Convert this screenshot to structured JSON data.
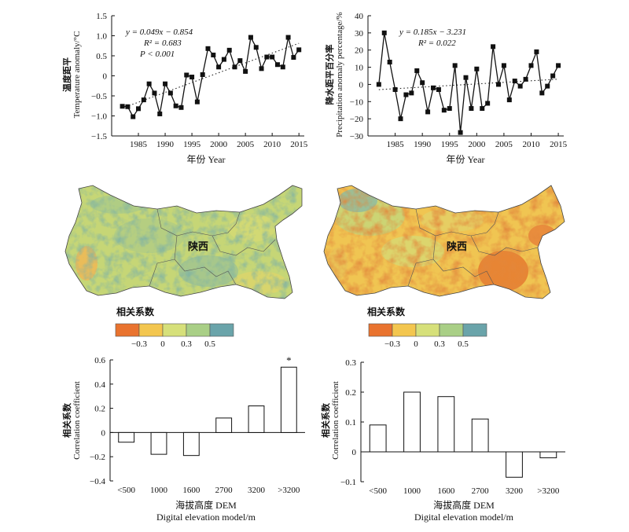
{
  "chart_data": [
    {
      "id": "temp",
      "type": "line",
      "ylabel_cn": "温度距平",
      "ylabel_en": "Temperature anomaly/°C",
      "xlabel": "年份 Year",
      "x": [
        1982,
        1983,
        1984,
        1985,
        1986,
        1987,
        1988,
        1989,
        1990,
        1991,
        1992,
        1993,
        1994,
        1995,
        1996,
        1997,
        1998,
        1999,
        2000,
        2001,
        2002,
        2003,
        2004,
        2005,
        2006,
        2007,
        2008,
        2009,
        2010,
        2011,
        2012,
        2013,
        2014,
        2015
      ],
      "y": [
        -0.76,
        -0.77,
        -1.02,
        -0.82,
        -0.6,
        -0.2,
        -0.43,
        -0.95,
        -0.2,
        -0.43,
        -0.75,
        -0.79,
        0.02,
        -0.03,
        -0.65,
        0.03,
        0.68,
        0.52,
        0.22,
        0.41,
        0.64,
        0.22,
        0.38,
        0.11,
        0.96,
        0.71,
        0.18,
        0.47,
        0.47,
        0.28,
        0.22,
        0.96,
        0.46,
        0.65
      ],
      "xlim": [
        1980,
        2016
      ],
      "ylim": [
        -1.5,
        1.5
      ],
      "xticks": [
        1985,
        1990,
        1995,
        2000,
        2005,
        2010,
        2015
      ],
      "yticks": [
        -1.5,
        -1.0,
        -0.5,
        0,
        0.5,
        1.0,
        1.5
      ],
      "ytick_labels": [
        "−1.5",
        "−1.0",
        "−0.5",
        "0",
        "0.5",
        "1.0",
        "1.5"
      ],
      "trend": {
        "slope": 0.049,
        "intercept": -0.854
      },
      "equation": "y = 0.049x − 0.854",
      "r2": "R² = 0.683",
      "p": "P < 0.001"
    },
    {
      "id": "precip",
      "type": "line",
      "ylabel_cn": "降水距平百分率",
      "ylabel_en": "Precipitation anomaly percentage/%",
      "xlabel": "年份 Year",
      "x": [
        1982,
        1983,
        1984,
        1985,
        1986,
        1987,
        1988,
        1989,
        1990,
        1991,
        1992,
        1993,
        1994,
        1995,
        1996,
        1997,
        1998,
        1999,
        2000,
        2001,
        2002,
        2003,
        2004,
        2005,
        2006,
        2007,
        2008,
        2009,
        2010,
        2011,
        2012,
        2013,
        2014,
        2015
      ],
      "y": [
        0,
        30,
        13,
        -3,
        -20,
        -6,
        -5,
        8,
        1,
        -16,
        -2,
        -3,
        -15,
        -14,
        11,
        -28,
        4,
        -14,
        9,
        -14,
        -11,
        22,
        0,
        11,
        -9,
        2,
        -1,
        3,
        11,
        19,
        -5,
        -1,
        5,
        11
      ],
      "xlim": [
        1980,
        2016
      ],
      "ylim": [
        -30,
        40
      ],
      "xticks": [
        1985,
        1990,
        1995,
        2000,
        2005,
        2010,
        2015
      ],
      "yticks": [
        -30,
        -20,
        -10,
        0,
        10,
        20,
        30,
        40
      ],
      "ytick_labels": [
        "−30",
        "−20",
        "−10",
        "0",
        "10",
        "20",
        "30",
        "40"
      ],
      "trend": {
        "slope": 0.185,
        "intercept": -3.231
      },
      "equation": "y = 0.185x − 3.231",
      "r2": "R² = 0.022"
    },
    {
      "id": "bar-temp",
      "type": "bar",
      "ylabel_cn": "相关系数",
      "ylabel_en": "Correlation coefficient",
      "xlabel_cn": "海拔高度 DEM",
      "xlabel_en": "Digital elevation model/m",
      "categories": [
        "<500",
        "1000",
        "1600",
        "2700",
        "3200",
        ">3200"
      ],
      "values": [
        -0.08,
        -0.18,
        -0.19,
        0.12,
        0.22,
        0.54
      ],
      "ylim": [
        -0.4,
        0.6
      ],
      "yticks": [
        -0.4,
        -0.2,
        0,
        0.2,
        0.4,
        0.6
      ],
      "ytick_labels": [
        "−0.4",
        "−0.2",
        "0",
        "0.2",
        "0.4",
        "0.6"
      ],
      "annotation": {
        "category": ">3200",
        "text": "*"
      }
    },
    {
      "id": "bar-precip",
      "type": "bar",
      "ylabel_cn": "相关系数",
      "ylabel_en": "Correlation coefficient",
      "xlabel_cn": "海拔高度 DEM",
      "xlabel_en": "Digital elevation model/m",
      "categories": [
        "<500",
        "1000",
        "1600",
        "2700",
        "3200",
        ">3200"
      ],
      "values": [
        0.09,
        0.2,
        0.185,
        0.11,
        -0.085,
        -0.02
      ],
      "ylim": [
        -0.1,
        0.3
      ],
      "yticks": [
        -0.1,
        0,
        0.1,
        0.2,
        0.3
      ],
      "ytick_labels": [
        "−0.1",
        "0",
        "0.1",
        "0.2",
        "0.3"
      ]
    }
  ],
  "maps": {
    "left": {
      "region_label": "陕西"
    },
    "right": {
      "region_label": "陕西"
    }
  },
  "legend": {
    "title": "相关系数",
    "colors": [
      "#e9732f",
      "#f3c64f",
      "#d6e07a",
      "#a9cf86",
      "#6aa4aa"
    ],
    "tick_labels": [
      "−0.3",
      "0",
      "0.3",
      "0.5"
    ]
  }
}
